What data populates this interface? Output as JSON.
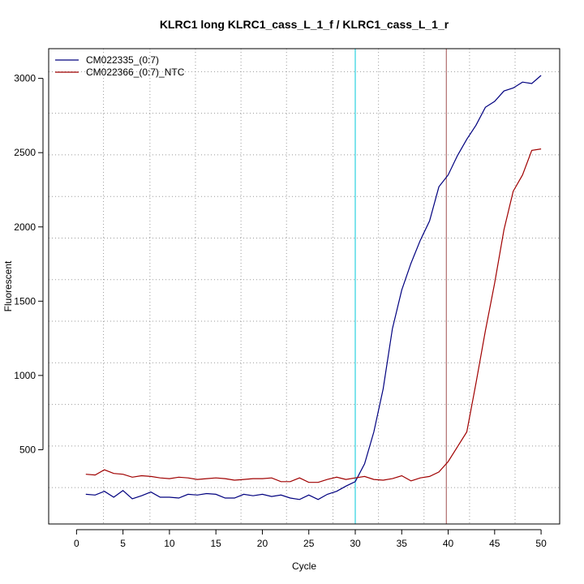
{
  "chart_data": {
    "type": "line",
    "title": "KLRC1 long KLRC1_cass_L_1_f / KLRC1_cass_L_1_r",
    "xlabel": "Cycle",
    "ylabel": "Fluorescent",
    "xlim": [
      -3,
      52
    ],
    "ylim": [
      0,
      3200
    ],
    "x_ticks": [
      0,
      5,
      10,
      15,
      20,
      25,
      30,
      35,
      40,
      45,
      50
    ],
    "x_tick_labels": [
      "0",
      "5",
      "10",
      "15",
      "20",
      "25",
      "30",
      "35",
      "40",
      "45",
      "50"
    ],
    "y_ticks": [
      500,
      1000,
      1500,
      2000,
      2500,
      3000
    ],
    "y_tick_labels": [
      "500",
      "1000",
      "1500",
      "2000",
      "2500",
      "3000"
    ],
    "legend_position": "top-left",
    "grid": {
      "vertical": [
        2.9,
        7.9,
        12.8,
        17.7,
        22.6,
        27.6,
        32.5,
        37.4,
        42.3,
        47.2
      ],
      "horizontal": [
        245,
        525,
        805,
        1085,
        1365,
        1645,
        1925,
        2205,
        2485,
        2765,
        3045
      ]
    },
    "markers": [
      {
        "x": 30,
        "color": "#00c8d8"
      },
      {
        "x": 39.8,
        "color": "#a05050"
      }
    ],
    "series": [
      {
        "name": "CM022335_(0:7)",
        "color": "#00007f",
        "x": [
          1,
          2,
          3,
          4,
          5,
          6,
          7,
          8,
          9,
          10,
          11,
          12,
          13,
          14,
          15,
          16,
          17,
          18,
          19,
          20,
          21,
          22,
          23,
          24,
          25,
          26,
          27,
          28,
          29,
          30,
          31,
          32,
          33,
          34,
          35,
          36,
          37,
          38,
          39,
          40,
          41,
          42,
          43,
          44,
          45,
          46,
          47,
          48,
          49,
          50
        ],
        "values": [
          200,
          195,
          220,
          180,
          225,
          170,
          190,
          215,
          180,
          180,
          175,
          200,
          195,
          205,
          200,
          175,
          175,
          200,
          190,
          200,
          185,
          195,
          175,
          165,
          195,
          165,
          200,
          220,
          255,
          285,
          405,
          620,
          910,
          1315,
          1575,
          1755,
          1910,
          2040,
          2270,
          2350,
          2480,
          2590,
          2685,
          2805,
          2845,
          2915,
          2935,
          2975,
          2965,
          3020
        ]
      },
      {
        "name": "CM022366_(0:7)_NTC",
        "color": "#a00000",
        "x": [
          1,
          2,
          3,
          4,
          5,
          6,
          7,
          8,
          9,
          10,
          11,
          12,
          13,
          14,
          15,
          16,
          17,
          18,
          19,
          20,
          21,
          22,
          23,
          24,
          25,
          26,
          27,
          28,
          29,
          30,
          31,
          32,
          33,
          34,
          35,
          36,
          37,
          38,
          39,
          40,
          41,
          42,
          43,
          44,
          45,
          46,
          47,
          48,
          49,
          50
        ],
        "values": [
          335,
          330,
          365,
          340,
          335,
          315,
          325,
          320,
          310,
          305,
          315,
          310,
          300,
          305,
          310,
          305,
          295,
          300,
          305,
          305,
          310,
          285,
          285,
          310,
          280,
          280,
          300,
          315,
          300,
          310,
          320,
          300,
          295,
          305,
          325,
          290,
          310,
          320,
          350,
          420,
          520,
          620,
          950,
          1300,
          1620,
          1980,
          2240,
          2350,
          2515,
          2525
        ]
      }
    ]
  }
}
